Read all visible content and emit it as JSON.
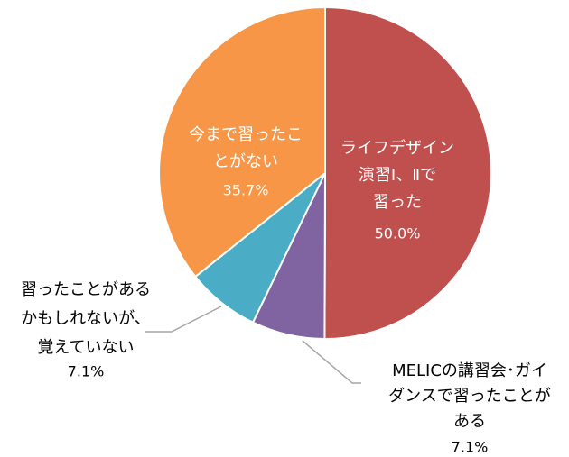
{
  "chart_data": {
    "type": "pie",
    "categories": [
      [
        "ライフデザイン",
        "演習Ⅰ、Ⅱで",
        "習った"
      ],
      [
        "MELICの講習会･ガイ",
        "ダンスで習ったことが",
        "ある"
      ],
      [
        "習ったことがある",
        "かもしれないが、",
        "覚えていない"
      ],
      [
        "今まで習ったこ",
        "とがない"
      ]
    ],
    "values": [
      50.0,
      7.1,
      7.1,
      35.7
    ],
    "value_labels": [
      "50.0%",
      "7.1%",
      "7.1%",
      "35.7%"
    ],
    "colors": [
      "#c0504d",
      "#8064a2",
      "#4bacc6",
      "#f79646"
    ]
  }
}
